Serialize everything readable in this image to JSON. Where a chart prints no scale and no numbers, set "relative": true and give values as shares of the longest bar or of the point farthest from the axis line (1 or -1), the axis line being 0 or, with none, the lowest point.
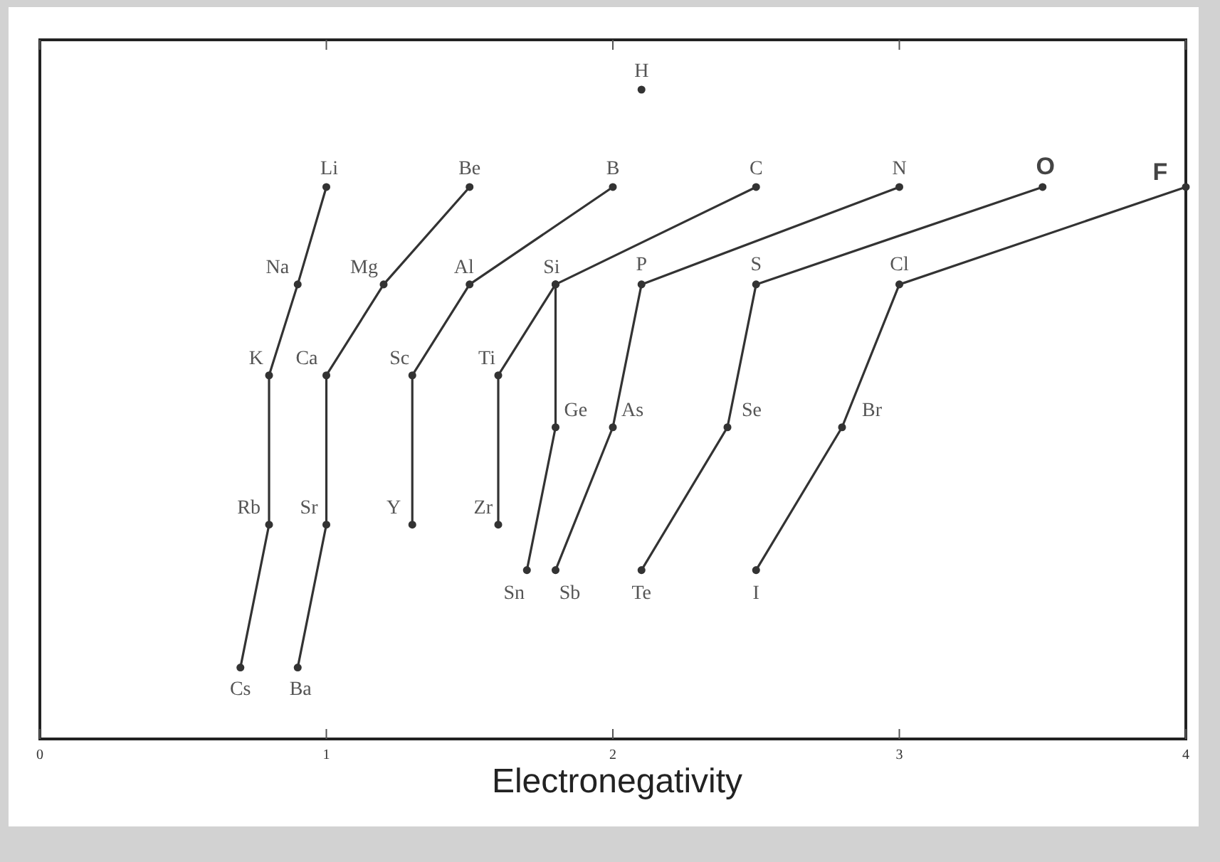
{
  "chart_data": {
    "type": "line",
    "relative": true,
    "xlabel": "Electronegativity",
    "xlim": [
      0,
      4
    ],
    "xticks": [
      0,
      1,
      2,
      3,
      4
    ],
    "marker": "circle",
    "line_style": "solid",
    "series": [
      {
        "type": "scatter",
        "color": "#333333",
        "x": [
          2.1
        ],
        "values": [
          1
        ]
      },
      {
        "color": "#333333",
        "x": [
          1.0,
          0.9,
          0.8,
          0.8,
          0.7
        ],
        "values": [
          0.85,
          0.7,
          0.56,
          0.33,
          0.11
        ]
      },
      {
        "color": "#333333",
        "x": [
          1.5,
          1.2,
          1.0,
          1.0,
          0.9
        ],
        "values": [
          0.85,
          0.7,
          0.56,
          0.33,
          0.11
        ]
      },
      {
        "color": "#333333",
        "x": [
          2.0,
          1.5,
          1.3,
          1.3
        ],
        "values": [
          0.85,
          0.7,
          0.56,
          0.33
        ]
      },
      {
        "color": "#333333",
        "x": [
          2.5,
          1.8,
          1.6,
          1.6
        ],
        "values": [
          0.85,
          0.7,
          0.56,
          0.33
        ]
      },
      {
        "color": "#333333",
        "x": [
          1.8,
          1.8,
          1.7
        ],
        "values": [
          0.7,
          0.48,
          0.26
        ]
      },
      {
        "color": "#333333",
        "x": [
          3.0,
          2.1,
          2.0,
          1.8
        ],
        "values": [
          0.85,
          0.7,
          0.48,
          0.26
        ]
      },
      {
        "color": "#333333",
        "x": [
          3.5,
          2.5,
          2.4,
          2.1
        ],
        "values": [
          0.85,
          0.7,
          0.48,
          0.26
        ]
      },
      {
        "color": "#333333",
        "x": [
          4.0,
          3.0,
          2.8,
          2.5
        ],
        "values": [
          0.85,
          0.7,
          0.48,
          0.26
        ]
      }
    ],
    "annotations": [
      {
        "text": "H",
        "x": 2.1,
        "y": 1
      },
      {
        "text": "Li",
        "x": 1.0,
        "y": 0.85
      },
      {
        "text": "Be",
        "x": 1.5,
        "y": 0.85
      },
      {
        "text": "B",
        "x": 2.0,
        "y": 0.85
      },
      {
        "text": "C",
        "x": 2.5,
        "y": 0.85
      },
      {
        "text": "N",
        "x": 3.0,
        "y": 0.85
      },
      {
        "text": "O",
        "x": 3.5,
        "y": 0.85
      },
      {
        "text": "F",
        "x": 4.0,
        "y": 0.85
      },
      {
        "text": "Na",
        "x": 0.9,
        "y": 0.7
      },
      {
        "text": "Mg",
        "x": 1.2,
        "y": 0.7
      },
      {
        "text": "Al",
        "x": 1.5,
        "y": 0.7
      },
      {
        "text": "Si",
        "x": 1.8,
        "y": 0.7
      },
      {
        "text": "P",
        "x": 2.1,
        "y": 0.7
      },
      {
        "text": "S",
        "x": 2.5,
        "y": 0.7
      },
      {
        "text": "Cl",
        "x": 3.0,
        "y": 0.7
      },
      {
        "text": "K",
        "x": 0.8,
        "y": 0.56
      },
      {
        "text": "Ca",
        "x": 1.0,
        "y": 0.56
      },
      {
        "text": "Sc",
        "x": 1.3,
        "y": 0.56
      },
      {
        "text": "Ti",
        "x": 1.6,
        "y": 0.56
      },
      {
        "text": "Ge",
        "x": 1.8,
        "y": 0.48
      },
      {
        "text": "As",
        "x": 2.0,
        "y": 0.48
      },
      {
        "text": "Se",
        "x": 2.4,
        "y": 0.48
      },
      {
        "text": "Br",
        "x": 2.8,
        "y": 0.48
      },
      {
        "text": "Rb",
        "x": 0.8,
        "y": 0.33
      },
      {
        "text": "Sr",
        "x": 1.0,
        "y": 0.33
      },
      {
        "text": "Y",
        "x": 1.3,
        "y": 0.33
      },
      {
        "text": "Zr",
        "x": 1.6,
        "y": 0.33
      },
      {
        "text": "Sn",
        "x": 1.7,
        "y": 0.26
      },
      {
        "text": "Sb",
        "x": 1.8,
        "y": 0.26
      },
      {
        "text": "Te",
        "x": 2.1,
        "y": 0.26
      },
      {
        "text": "I",
        "x": 2.5,
        "y": 0.26
      },
      {
        "text": "Cs",
        "x": 0.7,
        "y": 0.11
      },
      {
        "text": "Ba",
        "x": 0.9,
        "y": 0.11
      }
    ]
  }
}
